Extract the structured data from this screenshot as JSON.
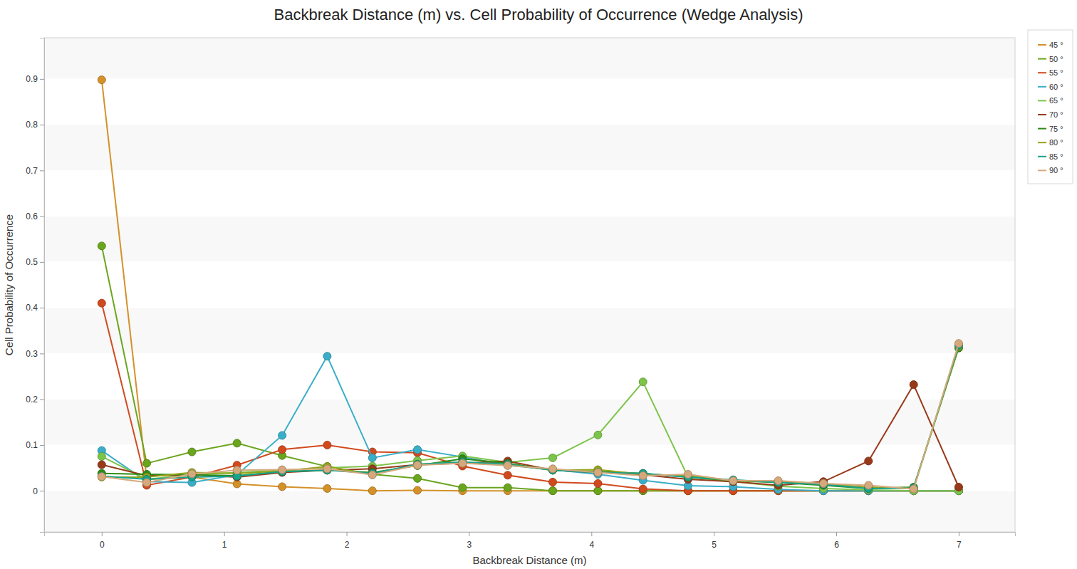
{
  "chart_data": {
    "type": "line",
    "title": "Backbreak Distance (m) vs. Cell Probability of Occurrence (Wedge Analysis)",
    "x_label": "Backbreak Distance (m)",
    "y_label": "Cell Probability of Occurrence",
    "x": [
      0,
      0.368,
      0.737,
      1.105,
      1.474,
      1.842,
      2.211,
      2.579,
      2.947,
      3.316,
      3.684,
      4.053,
      4.421,
      4.789,
      5.158,
      5.526,
      5.895,
      6.263,
      6.632,
      7
    ],
    "xlim": [
      -0.47,
      7.46
    ],
    "xticks": [
      0,
      1,
      2,
      3,
      4,
      5,
      6,
      7
    ],
    "ylim": [
      -0.09,
      0.99
    ],
    "yticks": [
      0,
      0.1,
      0.2,
      0.3,
      0.4,
      0.5,
      0.6,
      0.7,
      0.8,
      0.9
    ],
    "grid": true,
    "legend": "top-right",
    "marker": "circle",
    "line_style": "solid",
    "series": [
      {
        "name": "45 °",
        "color": "#d4912a",
        "values": [
          0.898,
          0.025,
          0.03,
          0.015,
          0.009,
          0.005,
          0,
          0.001,
          0,
          0,
          0,
          0,
          0,
          0,
          0,
          0,
          0,
          0,
          0,
          0
        ]
      },
      {
        "name": "50 °",
        "color": "#6aa51e",
        "values": [
          0.535,
          0.06,
          0.085,
          0.104,
          0.077,
          0.053,
          0.036,
          0.027,
          0.007,
          0.007,
          0,
          0,
          0,
          0,
          0,
          0,
          0,
          0,
          0,
          0
        ]
      },
      {
        "name": "55 °",
        "color": "#d04a1e",
        "values": [
          0.41,
          0.012,
          0.03,
          0.056,
          0.09,
          0.1,
          0.085,
          0.083,
          0.054,
          0.034,
          0.019,
          0.016,
          0.004,
          0,
          0,
          0,
          0,
          0,
          0,
          0
        ]
      },
      {
        "name": "60 °",
        "color": "#3aaec8",
        "values": [
          0.088,
          0.02,
          0.018,
          0.035,
          0.121,
          0.294,
          0.072,
          0.09,
          0.074,
          0.056,
          0.046,
          0.036,
          0.023,
          0.011,
          0.009,
          0.003,
          0,
          0,
          0,
          0
        ]
      },
      {
        "name": "65 °",
        "color": "#7dc44a",
        "values": [
          0.075,
          0.025,
          0.035,
          0.04,
          0.045,
          0.05,
          0.054,
          0.066,
          0.076,
          0.062,
          0.072,
          0.122,
          0.238,
          0.03,
          0.02,
          0.01,
          0.005,
          0.002,
          0,
          0
        ]
      },
      {
        "name": "70 °",
        "color": "#983a1a",
        "values": [
          0.057,
          0.033,
          0.035,
          0.03,
          0.04,
          0.045,
          0.048,
          0.057,
          0.06,
          0.065,
          0.045,
          0.04,
          0.035,
          0.025,
          0.02,
          0.012,
          0.02,
          0.065,
          0.232,
          0.008
        ]
      },
      {
        "name": "75 °",
        "color": "#2e8b16",
        "values": [
          0.038,
          0.036,
          0.035,
          0.033,
          0.042,
          0.045,
          0.04,
          0.055,
          0.07,
          0.06,
          0.045,
          0.042,
          0.038,
          0.03,
          0.022,
          0.018,
          0.012,
          0.005,
          0.008,
          0.312
        ]
      },
      {
        "name": "80 °",
        "color": "#94a41a",
        "values": [
          0.03,
          0.03,
          0.04,
          0.038,
          0.043,
          0.053,
          0.035,
          0.058,
          0.062,
          0.058,
          0.045,
          0.046,
          0.036,
          0.033,
          0.022,
          0.02,
          0.015,
          0.008,
          0.005,
          0.315
        ]
      },
      {
        "name": "85 °",
        "color": "#17a38a",
        "values": [
          0.032,
          0.025,
          0.03,
          0.032,
          0.042,
          0.045,
          0.038,
          0.058,
          0.063,
          0.058,
          0.045,
          0.04,
          0.038,
          0.03,
          0.024,
          0.018,
          0.014,
          0.005,
          0.006,
          0.318
        ]
      },
      {
        "name": "90 °",
        "color": "#d6a97c",
        "values": [
          0.031,
          0.018,
          0.037,
          0.045,
          0.046,
          0.048,
          0.035,
          0.056,
          0.06,
          0.055,
          0.048,
          0.04,
          0.033,
          0.036,
          0.022,
          0.022,
          0.016,
          0.012,
          0.004,
          0.322
        ]
      }
    ]
  }
}
